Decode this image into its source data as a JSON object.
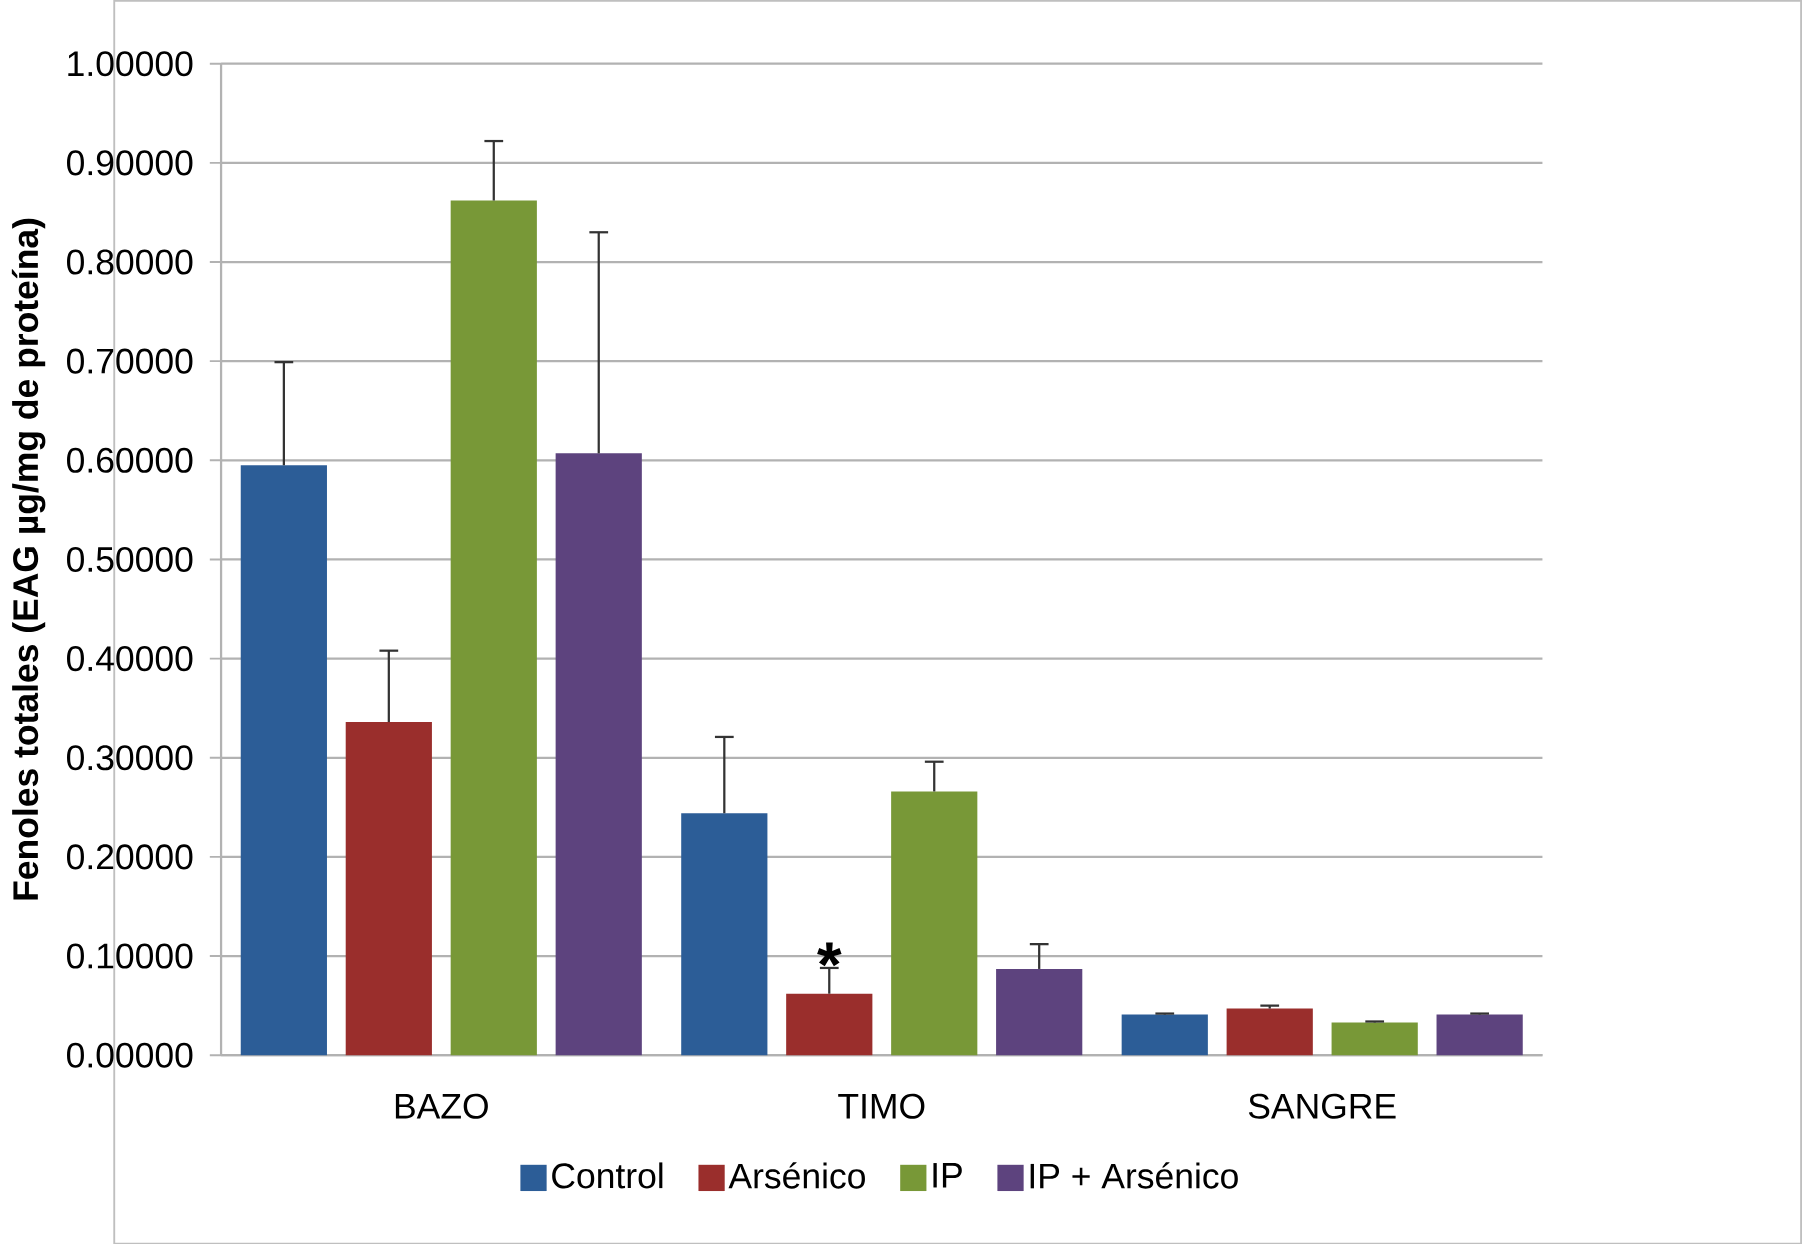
{
  "chart_data": {
    "type": "bar",
    "ylabel": "Fenoles totales (EAG µg/mg de proteína)",
    "categories": [
      "BAZO",
      "TIMO",
      "SANGRE"
    ],
    "series": [
      {
        "name": "Control",
        "color": "#2c5d97",
        "values": [
          0.595,
          0.244,
          0.041
        ],
        "errors": [
          [
            0.595,
            0.699
          ],
          [
            0.244,
            0.321
          ],
          [
            0.041,
            0.042
          ]
        ]
      },
      {
        "name": "Arsénico",
        "color": "#9a2e2c",
        "values": [
          0.336,
          0.062,
          0.047
        ],
        "errors": [
          [
            0.336,
            0.408
          ],
          [
            0.062,
            0.088
          ],
          [
            0.047,
            0.05
          ]
        ]
      },
      {
        "name": "IP",
        "color": "#789837",
        "values": [
          0.862,
          0.266,
          0.033
        ],
        "errors": [
          [
            0.862,
            0.922
          ],
          [
            0.266,
            0.296
          ],
          [
            0.033,
            0.034
          ]
        ]
      },
      {
        "name": "IP + Arsénico",
        "color": "#5d437e",
        "values": [
          0.607,
          0.087,
          0.041
        ],
        "errors": [
          [
            0.607,
            0.83
          ],
          [
            0.087,
            0.112
          ],
          [
            0.041,
            0.042
          ]
        ]
      }
    ],
    "ylim": [
      0,
      1
    ],
    "yticks": [
      {
        "value": 0,
        "label": "0.00000"
      },
      {
        "value": 0.1,
        "label": "0.10000"
      },
      {
        "value": 0.2,
        "label": "0.20000"
      },
      {
        "value": 0.3,
        "label": "0.30000"
      },
      {
        "value": 0.4,
        "label": "0.40000"
      },
      {
        "value": 0.5,
        "label": "0.50000"
      },
      {
        "value": 0.6,
        "label": "0.60000"
      },
      {
        "value": 0.7,
        "label": "0.70000"
      },
      {
        "value": 0.8,
        "label": "0.80000"
      },
      {
        "value": 0.9,
        "label": "0.90000"
      },
      {
        "value": 1,
        "label": "1.00000"
      }
    ],
    "grid": "y",
    "legend": "bottom",
    "annotations": [
      {
        "text": "*",
        "x": "TIMO",
        "y": 0.088
      }
    ]
  }
}
